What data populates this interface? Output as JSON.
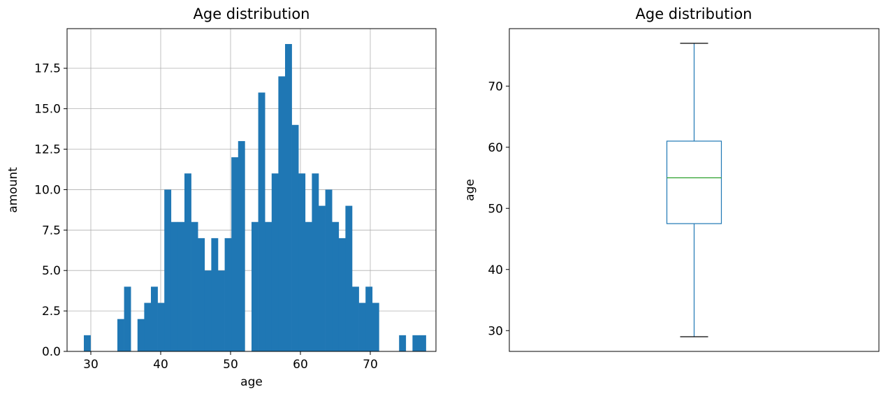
{
  "chart_data": [
    {
      "type": "bar",
      "subtype": "histogram",
      "title": "Age distribution",
      "xlabel": "age",
      "ylabel": "amount",
      "bin_start": 29,
      "bin_width": 0.96,
      "counts": [
        1,
        0,
        0,
        0,
        0,
        2,
        4,
        0,
        2,
        3,
        4,
        3,
        10,
        8,
        8,
        11,
        8,
        7,
        5,
        7,
        5,
        7,
        12,
        13,
        0,
        8,
        16,
        8,
        11,
        17,
        19,
        14,
        11,
        8,
        11,
        9,
        10,
        8,
        7,
        9,
        4,
        3,
        4,
        3,
        0,
        0,
        0,
        1,
        0,
        1,
        1
      ],
      "xlim": [
        26.6,
        79.4
      ],
      "ylim": [
        0,
        19.95
      ],
      "xticks": [
        30,
        40,
        50,
        60,
        70
      ],
      "yticks": [
        0.0,
        2.5,
        5.0,
        7.5,
        10.0,
        12.5,
        15.0,
        17.5
      ],
      "xtick_labels": [
        "30",
        "40",
        "50",
        "60",
        "70"
      ],
      "ytick_labels": [
        "0.0",
        "2.5",
        "5.0",
        "7.5",
        "10.0",
        "12.5",
        "15.0",
        "17.5"
      ],
      "grid": true,
      "color": "#1f77b4"
    },
    {
      "type": "box",
      "title": "Age distribution",
      "xlabel": "",
      "ylabel": "age",
      "whisker_low": 29,
      "q1": 47.5,
      "median": 55,
      "q3": 61,
      "whisker_high": 77,
      "ylim": [
        26.6,
        79.4
      ],
      "yticks": [
        30,
        40,
        50,
        60,
        70
      ],
      "ytick_labels": [
        "30",
        "40",
        "50",
        "60",
        "70"
      ],
      "grid": false,
      "box_color": "#1f77b4",
      "median_color": "#2ca02c"
    }
  ]
}
